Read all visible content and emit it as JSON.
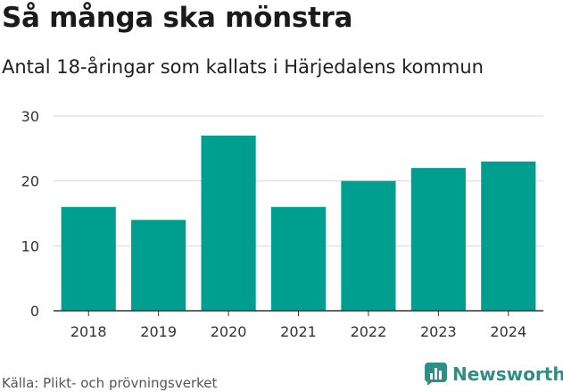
{
  "title": "Så många ska mönstra",
  "subtitle": "Antal 18-åringar som kallats i Härjedalens kommun",
  "source": "Källa: Plikt- och prövningsverket",
  "brand": {
    "name": "Newsworthy",
    "icon": "newsworthy-logo-icon"
  },
  "colors": {
    "bar": "#009e8e",
    "grid": "#d9d9d9",
    "axis": "#333333",
    "brand": "#2f8f86"
  },
  "chart_data": {
    "type": "bar",
    "categories": [
      "2018",
      "2019",
      "2020",
      "2021",
      "2022",
      "2023",
      "2024"
    ],
    "values": [
      16,
      14,
      27,
      16,
      20,
      22,
      23
    ],
    "ylim": [
      0,
      30
    ],
    "yticks": [
      "0",
      "10",
      "20",
      "30"
    ],
    "grid": true,
    "title": "Så många ska mönstra",
    "xlabel": "",
    "ylabel": ""
  }
}
